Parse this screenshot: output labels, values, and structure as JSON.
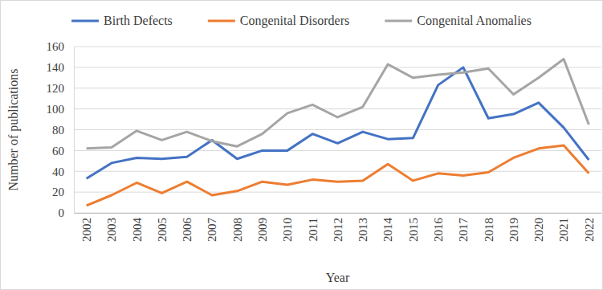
{
  "chart_data": {
    "type": "line",
    "x_label": "Year",
    "y_label": "Number of publications",
    "categories": [
      "2002",
      "2003",
      "2004",
      "2005",
      "2006",
      "2007",
      "2008",
      "2009",
      "2010",
      "2011",
      "2012",
      "2013",
      "2014",
      "2015",
      "2016",
      "2017",
      "2018",
      "2019",
      "2020",
      "2021",
      "2022"
    ],
    "series": [
      {
        "name": "Birth Defects",
        "color": "#4472c4",
        "values": [
          33,
          48,
          53,
          52,
          54,
          70,
          52,
          60,
          60,
          76,
          67,
          78,
          71,
          72,
          123,
          140,
          91,
          95,
          106,
          82,
          51
        ]
      },
      {
        "name": "Congenital Disorders",
        "color": "#ed7d31",
        "values": [
          7,
          17,
          29,
          19,
          30,
          17,
          21,
          30,
          27,
          32,
          30,
          31,
          47,
          31,
          38,
          36,
          39,
          53,
          62,
          65,
          38
        ]
      },
      {
        "name": "Congenital Anomalies",
        "color": "#a5a5a5",
        "values": [
          62,
          63,
          79,
          70,
          78,
          69,
          64,
          76,
          96,
          104,
          92,
          102,
          143,
          130,
          133,
          135,
          139,
          114,
          130,
          148,
          85
        ]
      }
    ],
    "ylim": [
      0,
      160
    ],
    "yticks": [
      0,
      20,
      40,
      60,
      80,
      100,
      120,
      140,
      160
    ],
    "grid": true,
    "legend": "top"
  }
}
